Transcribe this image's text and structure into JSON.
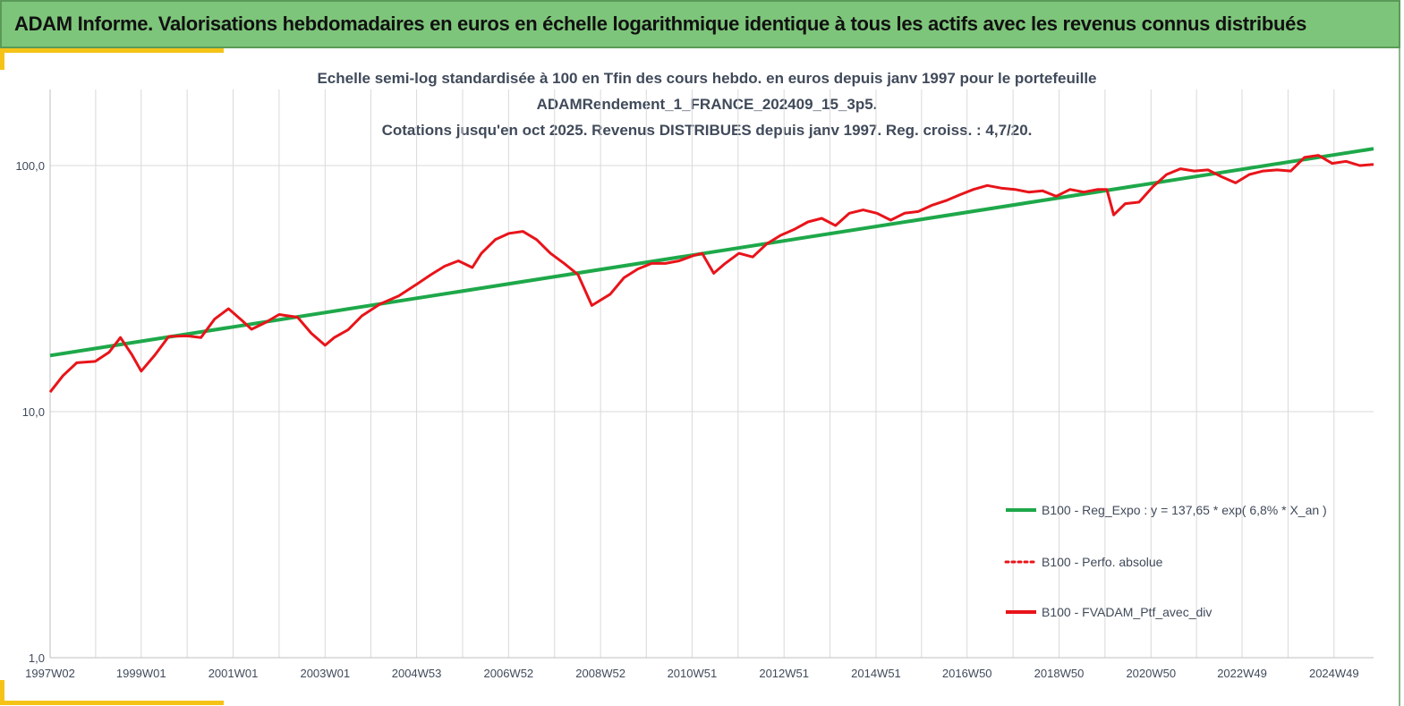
{
  "banner": {
    "title": "ADAM Informe. Valorisations hebdomadaires en euros en échelle logarithmique identique à tous les actifs avec les revenus connus distribués"
  },
  "colors": {
    "banner_bg": "#7dc57a",
    "accent": "#f5c318",
    "trend": "#1ea84a",
    "portfolio": "#e8141a",
    "grid": "#d9d9d9"
  },
  "chart_data": {
    "type": "line",
    "title_lines": [
      "Echelle semi-log standardisée à 100 en Tfin des cours hebdo.  en euros depuis janv 1997 pour le portefeuille",
      "ADAMRendement_1_FRANCE_202409_15_3p5.",
      "Cotations  jusqu'en oct 2025. Revenus DISTRIBUES depuis janv 1997. Reg. croiss. : 4,7/20."
    ],
    "y_scale": "log",
    "ylim": [
      1,
      200
    ],
    "y_ticks": [
      1,
      10,
      100
    ],
    "y_tick_labels": [
      "1,0",
      "10,0",
      "100,0"
    ],
    "xlim": [
      1997.02,
      2025.8
    ],
    "x_ticks": [
      1997.02,
      1999.0,
      2001.0,
      2003.0,
      2004.99,
      2006.99,
      2008.99,
      2010.98,
      2012.98,
      2014.98,
      2016.96,
      2018.96,
      2020.96,
      2022.94,
      2024.94
    ],
    "x_tick_labels": [
      "1997W02",
      "1999W01",
      "2001W01",
      "2003W01",
      "2004W53",
      "2006W52",
      "2008W52",
      "2010W51",
      "2012W51",
      "2014W51",
      "2016W50",
      "2018W50",
      "2020W50",
      "2022W49",
      "2024W49"
    ],
    "grid": "horizontal",
    "legend_position": "right",
    "legend": [
      {
        "label": "B100 - Reg_Expo : y = 137,65 * exp( 6,8% *  X_an )",
        "style": "solid",
        "color": "#1ea84a"
      },
      {
        "label": "B100 - Perfo. absolue",
        "style": "dotted",
        "color": "#e8141a"
      },
      {
        "label": "B100 - FVADAM_Ptf_avec_div",
        "style": "solid",
        "color": "#e8141a"
      }
    ],
    "series": [
      {
        "name": "B100 - Reg_Expo : y = 137,65 * exp( 6,8% *  X_an )",
        "type": "line",
        "x": [
          1997.02,
          2025.8
        ],
        "y": [
          16.9,
          117.0
        ]
      },
      {
        "name": "B100 - FVADAM_Ptf_avec_div",
        "type": "line",
        "x": [
          1997.02,
          1997.3,
          1997.6,
          1998.0,
          1998.3,
          1998.55,
          1998.8,
          1999.0,
          1999.3,
          1999.6,
          2000.0,
          2000.3,
          2000.6,
          2000.9,
          2001.2,
          2001.4,
          2001.7,
          2002.0,
          2002.4,
          2002.7,
          2003.0,
          2003.2,
          2003.5,
          2003.8,
          2004.2,
          2004.6,
          2005.0,
          2005.3,
          2005.6,
          2005.9,
          2006.2,
          2006.4,
          2006.7,
          2007.0,
          2007.3,
          2007.6,
          2007.9,
          2008.2,
          2008.5,
          2008.8,
          2009.2,
          2009.5,
          2009.8,
          2010.1,
          2010.4,
          2010.7,
          2011.0,
          2011.2,
          2011.45,
          2011.7,
          2012.0,
          2012.3,
          2012.6,
          2012.9,
          2013.2,
          2013.5,
          2013.8,
          2014.1,
          2014.4,
          2014.7,
          2015.0,
          2015.3,
          2015.6,
          2015.9,
          2016.2,
          2016.5,
          2016.8,
          2017.1,
          2017.4,
          2017.7,
          2018.0,
          2018.3,
          2018.6,
          2018.9,
          2019.2,
          2019.5,
          2019.8,
          2020.0,
          2020.15,
          2020.4,
          2020.7,
          2021.0,
          2021.3,
          2021.6,
          2021.9,
          2022.2,
          2022.5,
          2022.8,
          2023.1,
          2023.4,
          2023.7,
          2024.0,
          2024.3,
          2024.6,
          2024.9,
          2025.2,
          2025.5,
          2025.8
        ],
        "y": [
          12.0,
          14.0,
          15.8,
          16.0,
          17.4,
          20.0,
          17.0,
          14.6,
          17.0,
          20.2,
          20.3,
          20.0,
          23.8,
          26.2,
          23.4,
          21.6,
          23.0,
          24.8,
          24.2,
          20.8,
          18.6,
          20.0,
          21.5,
          24.5,
          27.4,
          29.5,
          33.0,
          36.0,
          39.0,
          41.0,
          38.5,
          44.0,
          50.0,
          53.0,
          54.0,
          50.0,
          44.0,
          40.0,
          36.0,
          27.0,
          30.0,
          35.0,
          38.0,
          40.0,
          40.0,
          41.0,
          43.0,
          44.0,
          36.5,
          40.0,
          44.0,
          42.5,
          48.0,
          52.0,
          55.0,
          59.0,
          61.0,
          57.0,
          64.0,
          66.0,
          64.0,
          60.0,
          64.0,
          65.0,
          69.0,
          72.0,
          76.0,
          80.0,
          83.0,
          81.0,
          80.0,
          78.0,
          79.0,
          75.0,
          80.0,
          78.0,
          80.0,
          80.0,
          63.0,
          70.0,
          71.0,
          82.0,
          92.0,
          97.0,
          95.0,
          96.0,
          90.0,
          85.0,
          92.0,
          95.0,
          96.0,
          95.0,
          108.0,
          110.0,
          102.0,
          104.0,
          100.0,
          101.0
        ]
      }
    ]
  }
}
